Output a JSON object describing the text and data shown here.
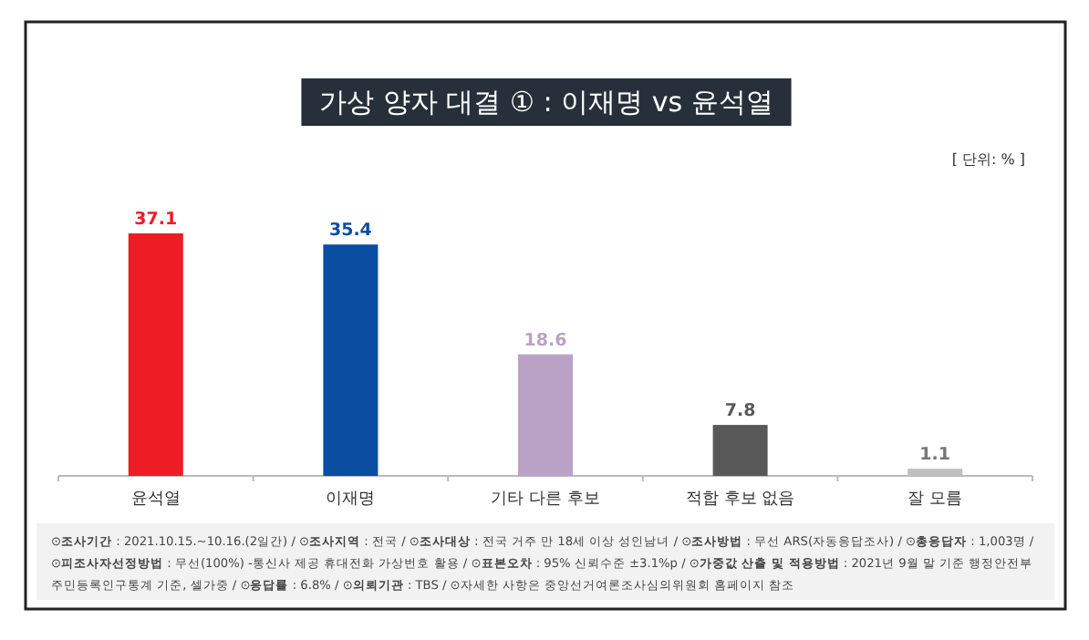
{
  "chart_data": {
    "type": "bar",
    "title": "가상  양자 대결 ① : 이재명 vs 윤석열",
    "categories": [
      "윤석열",
      "이재명",
      "기타 다른 후보",
      "적합 후보 없음",
      "잘 모름"
    ],
    "values": [
      37.1,
      35.4,
      18.6,
      7.8,
      1.1
    ],
    "colors": [
      "#ee1c25",
      "#0a4ea2",
      "#b9a2c6",
      "#595959",
      "#bfbfbf"
    ],
    "data_labels": true,
    "annotations": [
      "[ 단위: % ]",
      "⊙**조사기간** : 2021.10.15.~10.16.(2일간)  /  ⊙**조사지역** : 전국  /  ⊙**조사대상** : 전국 거주 만 18세 이상 성인남녀  /  ⊙**조사방법** : 무선 ARS(자동응답조사)  /  ⊙**총응답자** : 1,003명  /",
      "⊙**피조사자선정방법** : 무선(100%) -통신사 제공 휴대전화 가상번호 활용  /  ⊙**표본오차** : 95% 신뢰수준 ±3.1%p  /  ⊙**가중값 산출 및 적용방법** : 2021년 9월 말 기준 행정안전부",
      "주민등록인구통계 기준, 셀가중  /  ⊙**응답률** : 6.8%  /  ⊙**의뢰기관** : TBS  /  ⊙자세한 사항은 중앙선거여론조사심의위원회 홈페이지 참조"
    ]
  }
}
